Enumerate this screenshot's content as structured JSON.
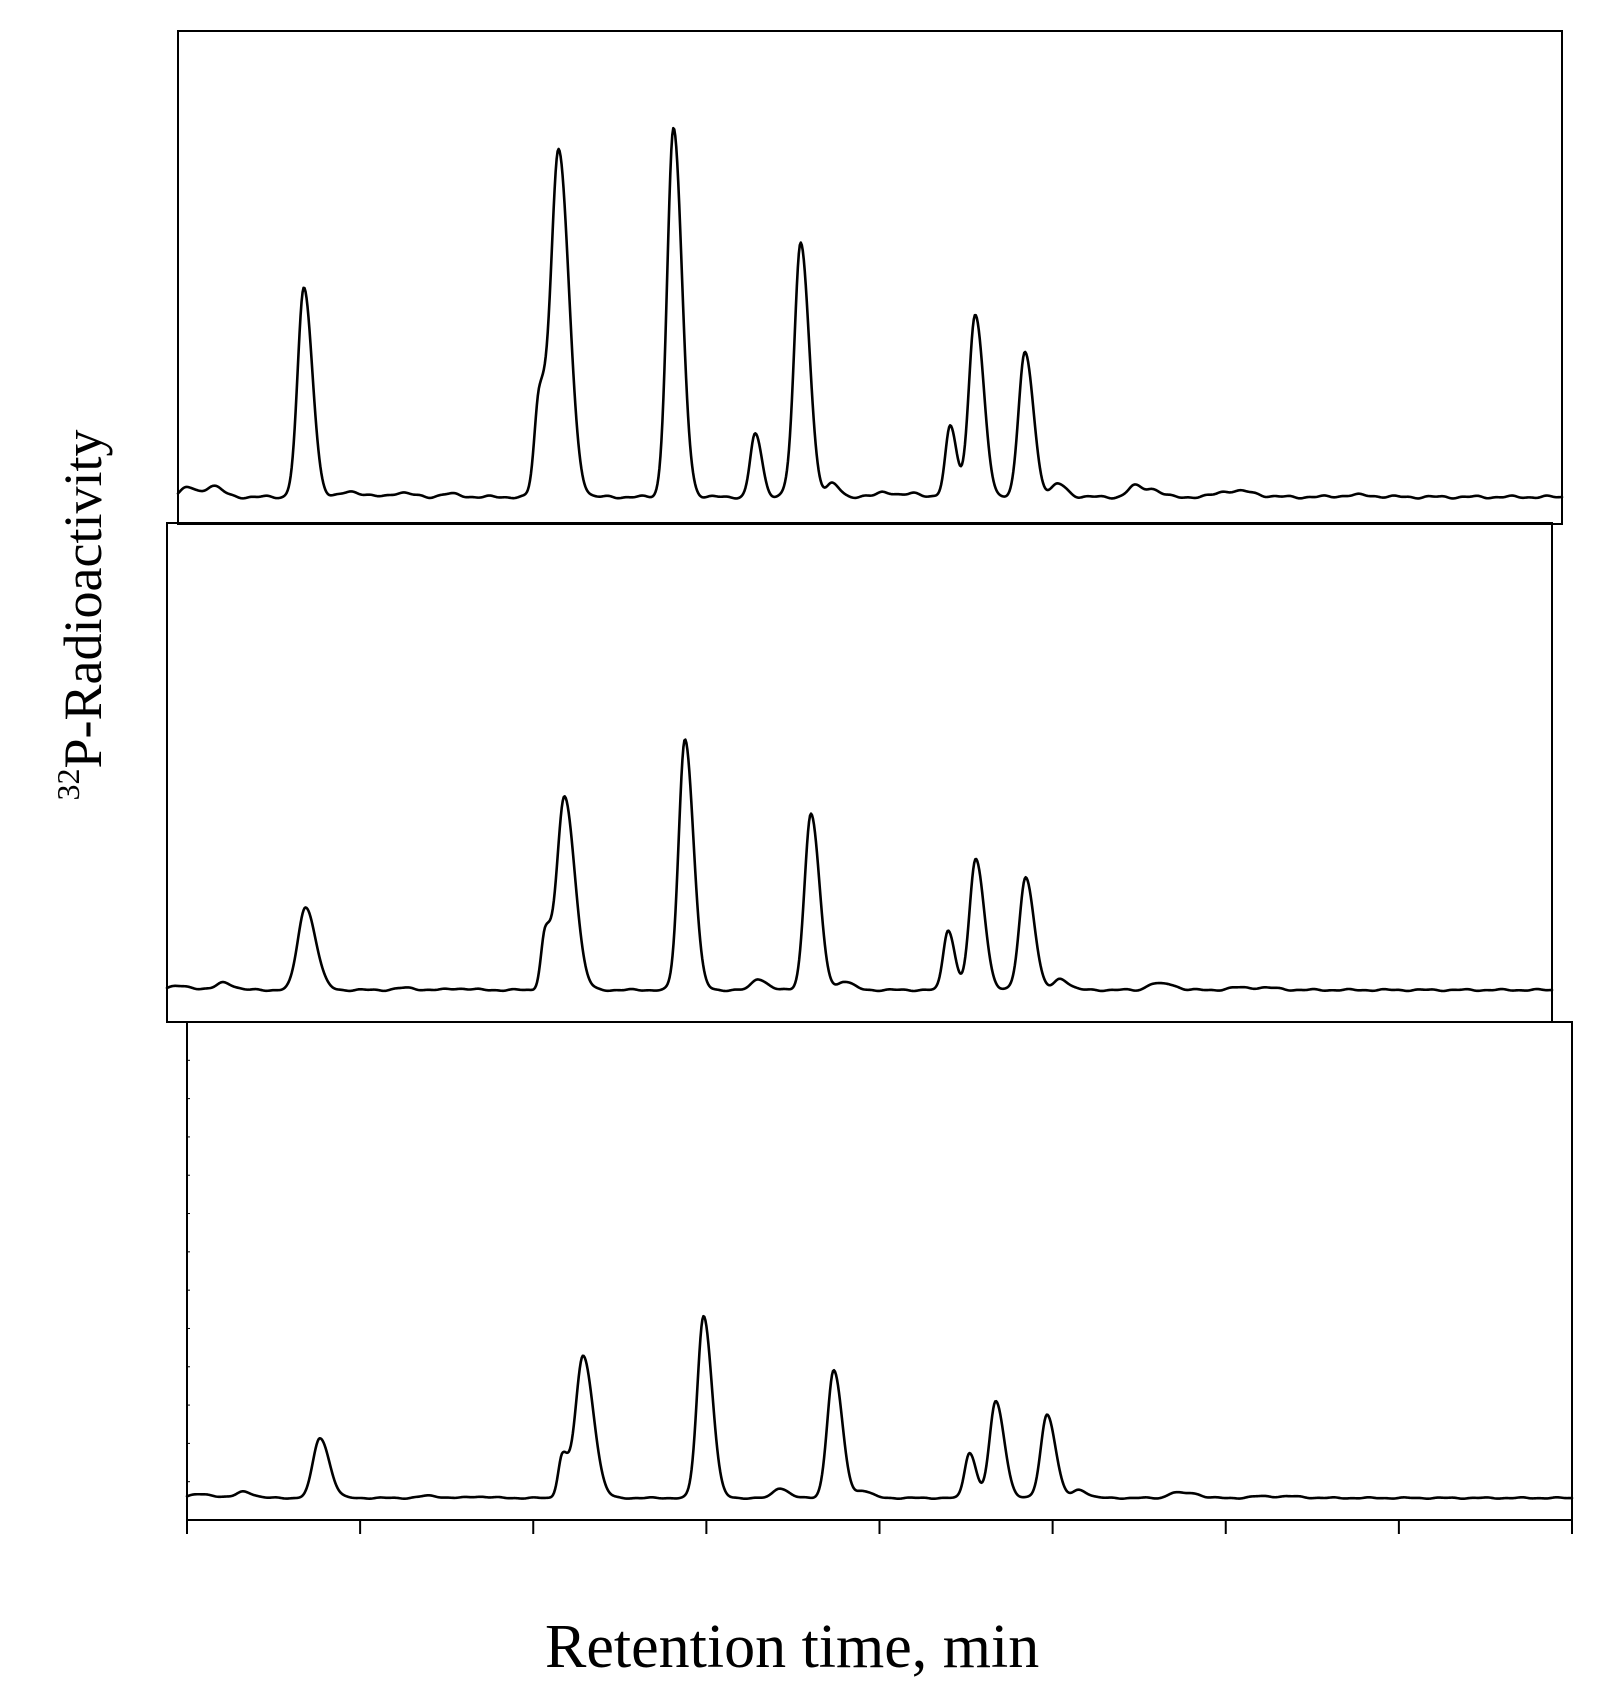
{
  "figure": {
    "ylabel_sup": "32",
    "ylabel_main": "P-Radioactivity",
    "xlabel": "Retention time, min"
  },
  "chart_data": {
    "type": "line",
    "grid": false,
    "xlim": [
      0,
      100
    ],
    "ylim": [
      0,
      100
    ],
    "x_tick_count": 9,
    "line_color": "#000000",
    "panels": [
      {
        "id": "top",
        "baseline": 0,
        "peaks": [
          [
            0.7,
            2.5,
            0.5
          ],
          [
            2.5,
            3.0,
            0.5
          ],
          [
            9.1,
            56.0,
            0.45
          ],
          [
            12.5,
            1.5,
            0.6
          ],
          [
            16.0,
            1.2,
            0.6
          ],
          [
            19.5,
            0.8,
            0.6
          ],
          [
            26.1,
            26.0,
            0.35
          ],
          [
            27.5,
            93.0,
            0.55
          ],
          [
            35.8,
            99.0,
            0.45
          ],
          [
            41.7,
            17.0,
            0.35
          ],
          [
            44.1,
            1.5,
            0.4
          ],
          [
            45.0,
            68.0,
            0.45
          ],
          [
            47.3,
            3.5,
            0.4
          ],
          [
            51.0,
            1.5,
            0.5
          ],
          [
            53.2,
            1.0,
            0.5
          ],
          [
            55.8,
            19.0,
            0.35
          ],
          [
            57.6,
            49.0,
            0.45
          ],
          [
            61.2,
            39.0,
            0.45
          ],
          [
            63.6,
            3.5,
            0.45
          ],
          [
            69.1,
            3.0,
            0.45
          ],
          [
            70.4,
            2.0,
            0.45
          ],
          [
            75.7,
            1.5,
            0.7
          ],
          [
            77.3,
            1.0,
            0.7
          ],
          [
            85.0,
            0.5,
            1.0
          ]
        ]
      },
      {
        "id": "middle",
        "baseline": 0,
        "peaks": [
          [
            0.9,
            1.5,
            0.8
          ],
          [
            4.1,
            3.0,
            0.5
          ],
          [
            10.0,
            33.0,
            0.55
          ],
          [
            17.1,
            0.8,
            0.6
          ],
          [
            21.0,
            0.6,
            0.6
          ],
          [
            27.3,
            22.0,
            0.3
          ],
          [
            28.7,
            77.0,
            0.55
          ],
          [
            37.4,
            100.0,
            0.45
          ],
          [
            42.7,
            4.5,
            0.45
          ],
          [
            46.1,
            1.8,
            0.4
          ],
          [
            46.5,
            69.0,
            0.45
          ],
          [
            48.9,
            3.5,
            0.45
          ],
          [
            56.4,
            24.0,
            0.35
          ],
          [
            58.4,
            52.0,
            0.45
          ],
          [
            62.0,
            45.0,
            0.45
          ],
          [
            64.5,
            4.5,
            0.45
          ],
          [
            71.2,
            2.5,
            0.45
          ],
          [
            72.4,
            2.0,
            0.45
          ],
          [
            77.4,
            1.0,
            0.7
          ],
          [
            79.4,
            0.8,
            0.7
          ]
        ]
      },
      {
        "id": "bottom",
        "baseline": 0,
        "peaks": [
          [
            1.0,
            2.0,
            0.8
          ],
          [
            4.1,
            3.5,
            0.5
          ],
          [
            9.6,
            33.0,
            0.5
          ],
          [
            17.4,
            1.2,
            0.6
          ],
          [
            21.0,
            0.8,
            0.6
          ],
          [
            27.1,
            23.0,
            0.3
          ],
          [
            28.6,
            78.0,
            0.55
          ],
          [
            37.3,
            100.0,
            0.45
          ],
          [
            42.8,
            5.5,
            0.45
          ],
          [
            46.2,
            1.8,
            0.4
          ],
          [
            46.7,
            69.0,
            0.45
          ],
          [
            48.8,
            4.0,
            0.45
          ],
          [
            56.5,
            25.0,
            0.35
          ],
          [
            58.4,
            53.0,
            0.45
          ],
          [
            62.1,
            46.0,
            0.45
          ],
          [
            64.4,
            4.5,
            0.45
          ],
          [
            71.3,
            3.0,
            0.45
          ],
          [
            72.6,
            2.5,
            0.45
          ],
          [
            77.6,
            1.0,
            0.7
          ],
          [
            79.7,
            0.8,
            0.7
          ]
        ]
      }
    ]
  }
}
